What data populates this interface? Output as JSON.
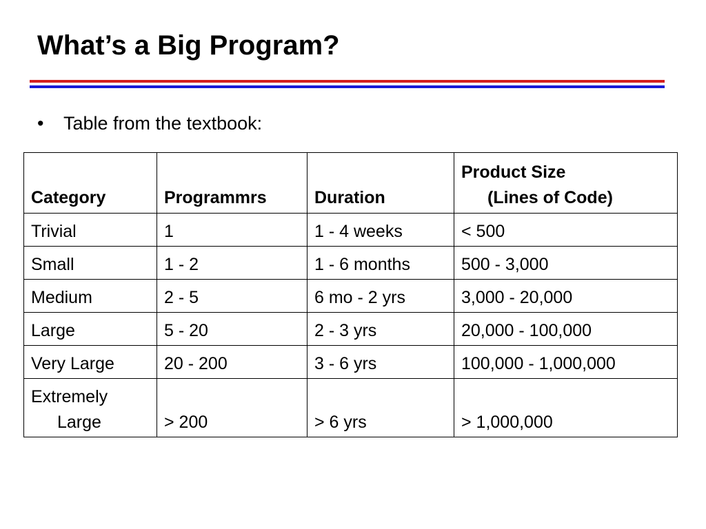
{
  "slide": {
    "title": "What’s a Big Program?",
    "bullet": "Table from the textbook:",
    "rule_colors": {
      "red": "#d42020",
      "blue": "#1a1ad6"
    }
  },
  "table": {
    "headers": {
      "category": "Category",
      "programmers": "Programmrs",
      "duration": "Duration",
      "size_line1": "Product Size",
      "size_line2": "(Lines of Code)"
    },
    "rows": [
      {
        "category": "Trivial",
        "programmers": "1",
        "duration": "1 - 4 weeks",
        "size": "< 500"
      },
      {
        "category": "Small",
        "programmers": "1 - 2",
        "duration": "1 - 6 months",
        "size": "500 - 3,000"
      },
      {
        "category": "Medium",
        "programmers": "2 - 5",
        "duration": "6 mo - 2 yrs",
        "size": "3,000 - 20,000"
      },
      {
        "category": "Large",
        "programmers": "5 - 20",
        "duration": "2 - 3 yrs",
        "size": "20,000 - 100,000"
      },
      {
        "category": "Very Large",
        "programmers": "20 - 200",
        "duration": "3 - 6 yrs",
        "size": "100,000 -  1,000,000"
      }
    ],
    "last_row": {
      "category_line1": "Extremely",
      "category_line2": "Large",
      "programmers": "> 200",
      "duration": "> 6 yrs",
      "size": "> 1,000,000"
    }
  }
}
